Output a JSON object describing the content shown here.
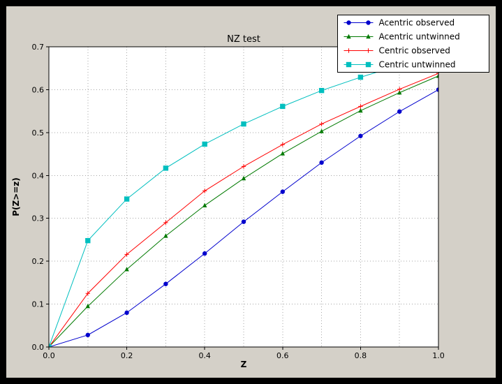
{
  "window": {
    "bg": "#000000"
  },
  "figure": {
    "bg": "#d4d0c8",
    "plot_bg": "#ffffff",
    "grid_color": "#a6a6a6",
    "axis_color": "#000000",
    "text_color": "#000000"
  },
  "chart_data": {
    "type": "line",
    "title": "NZ test",
    "xlabel": "Z",
    "ylabel": "P(Z>=z)",
    "xlim": [
      0.0,
      1.0
    ],
    "ylim": [
      0.0,
      0.7
    ],
    "grid": true,
    "grid_step_x": 0.1,
    "grid_step_y": 0.1,
    "legend_position": "upper right",
    "xticks": [
      0.0,
      0.2,
      0.4,
      0.6,
      0.8,
      1.0
    ],
    "xtick_labels": [
      "0.0",
      "0.2",
      "0.4",
      "0.6",
      "0.8",
      "1.0"
    ],
    "yticks": [
      0.0,
      0.1,
      0.2,
      0.3,
      0.4,
      0.5,
      0.6,
      0.7
    ],
    "ytick_labels": [
      "0.0",
      "0.1",
      "0.2",
      "0.3",
      "0.4",
      "0.5",
      "0.6",
      "0.7"
    ],
    "x": [
      0.0,
      0.1,
      0.2,
      0.3,
      0.4,
      0.5,
      0.6,
      0.7,
      0.8,
      0.9,
      1.0
    ],
    "series": [
      {
        "name": "Acentric observed",
        "color": "#0000cd",
        "marker": "circle",
        "values": [
          0.0,
          0.028,
          0.08,
          0.147,
          0.218,
          0.292,
          0.362,
          0.43,
          0.492,
          0.549,
          0.6
        ]
      },
      {
        "name": "Acentric untwinned",
        "color": "#007a00",
        "marker": "triangle",
        "values": [
          0.0,
          0.095,
          0.181,
          0.259,
          0.33,
          0.393,
          0.451,
          0.503,
          0.551,
          0.593,
          0.632
        ]
      },
      {
        "name": "Centric observed",
        "color": "#ff0000",
        "marker": "plus",
        "values": [
          0.0,
          0.125,
          0.216,
          0.29,
          0.364,
          0.421,
          0.472,
          0.52,
          0.561,
          0.601,
          0.638
        ]
      },
      {
        "name": "Centric untwinned",
        "color": "#00bfbf",
        "marker": "square",
        "values": [
          0.0,
          0.248,
          0.345,
          0.417,
          0.473,
          0.52,
          0.561,
          0.598,
          0.629,
          0.657,
          0.683
        ]
      }
    ]
  }
}
